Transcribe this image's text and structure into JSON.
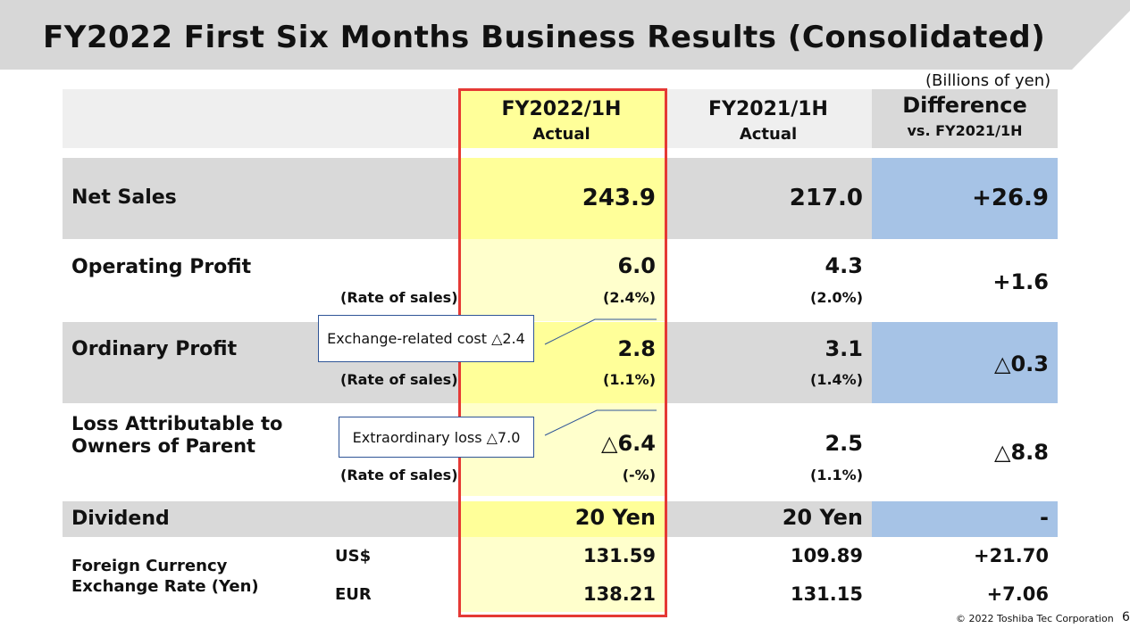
{
  "title": "FY2022 First Six Months Business Results (Consolidated)",
  "unit_note": "(Billions of yen)",
  "columns": [
    {
      "line1": "FY2022/1H",
      "line2": "Actual"
    },
    {
      "line1": "FY2021/1H",
      "line2": "Actual"
    },
    {
      "line1": "Difference",
      "line2": "vs. FY2021/1H"
    }
  ],
  "rows": {
    "net_sales": {
      "label": "Net Sales",
      "fy2022": "243.9",
      "fy2021": "217.0",
      "diff": "+26.9"
    },
    "operating_profit": {
      "label": "Operating Profit",
      "rate_label": "(Rate of sales)",
      "fy2022": "6.0",
      "fy2022_rate": "(2.4%)",
      "fy2021": "4.3",
      "fy2021_rate": "(2.0%)",
      "diff": "+1.6"
    },
    "ordinary_profit": {
      "label": "Ordinary Profit",
      "rate_label": "(Rate of sales)",
      "fy2022": "2.8",
      "fy2022_rate": "(1.1%)",
      "fy2021": "3.1",
      "fy2021_rate": "(1.4%)",
      "diff": "△0.3"
    },
    "loss_attributable": {
      "label_line1": "Loss Attributable to",
      "label_line2": "Owners of Parent",
      "rate_label": "(Rate of sales)",
      "fy2022": "△6.4",
      "fy2022_rate": "(-%)",
      "fy2021": "2.5",
      "fy2021_rate": "(1.1%)",
      "diff": "△8.8"
    },
    "dividend": {
      "label": "Dividend",
      "fy2022": "20 Yen",
      "fy2021": "20 Yen",
      "diff": "-"
    },
    "fx": {
      "label_line1": "Foreign Currency",
      "label_line2": "Exchange Rate (Yen)",
      "usd": {
        "label": "US$",
        "fy2022": "131.59",
        "fy2021": "109.89",
        "diff": "+21.70"
      },
      "eur": {
        "label": "EUR",
        "fy2022": "138.21",
        "fy2021": "131.15",
        "diff": "+7.06"
      }
    }
  },
  "callouts": {
    "exchange": "Exchange-related cost △2.4",
    "extraordinary": "Extraordinary loss △7.0"
  },
  "footer": "© 2022 Toshiba Tec Corporation",
  "page_number": "6",
  "colors": {
    "highlight_border": "#e53935",
    "highlight_fill": "#ffff99",
    "diff_fill": "#a6c3e6",
    "row_fill": "#d9d9d9"
  }
}
